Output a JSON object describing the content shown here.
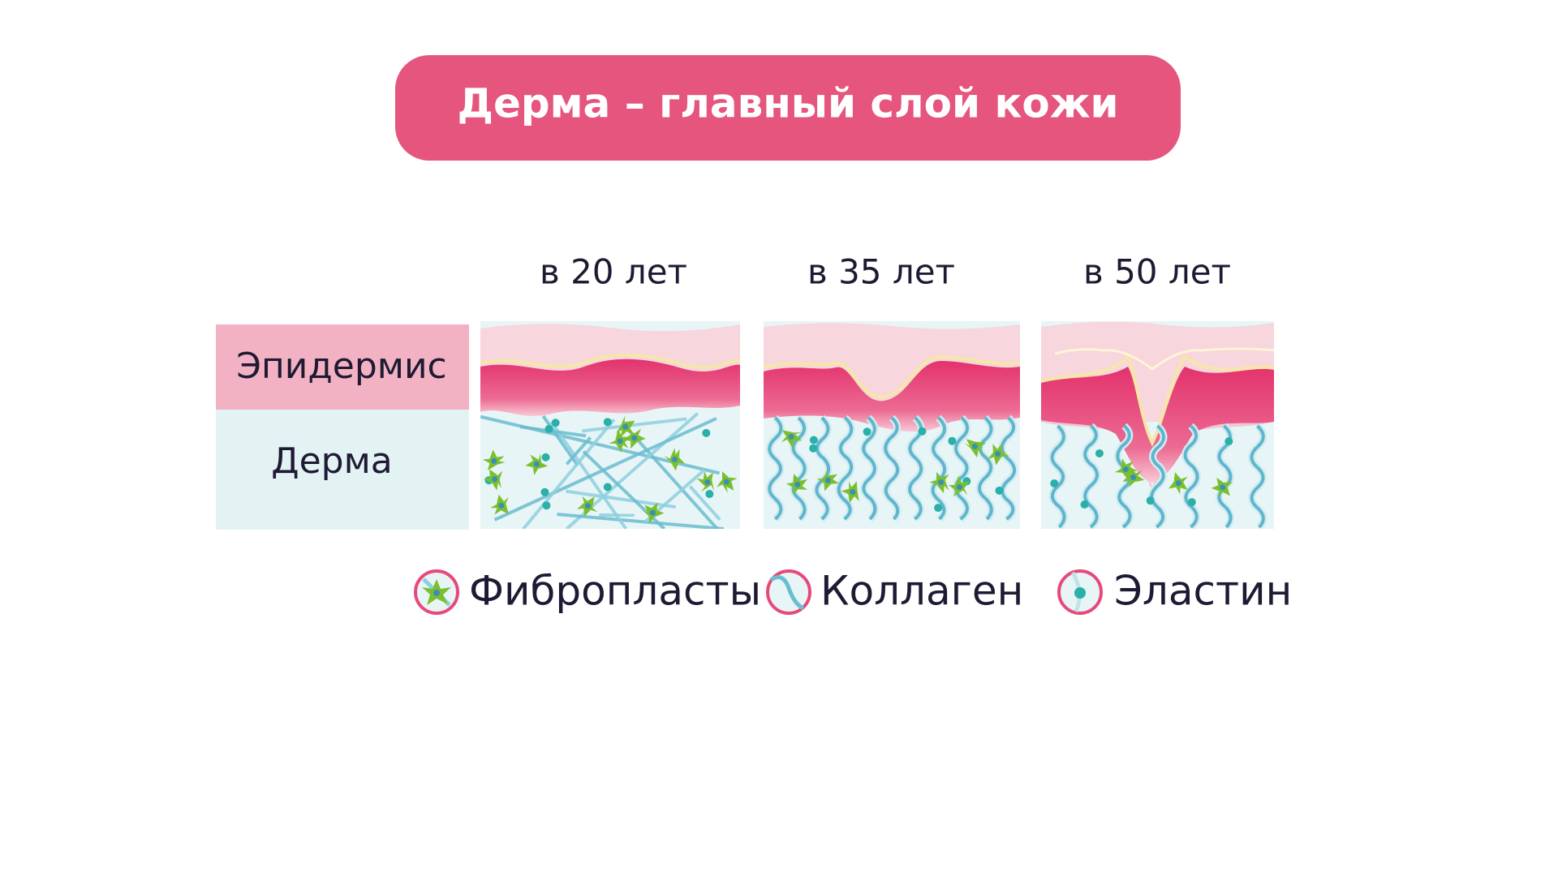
{
  "header": {
    "title": "Дерма – главный слой кожи"
  },
  "ages": [
    "в 20 лет",
    "в 35 лет",
    "в 50 лет"
  ],
  "layers": [
    "Эпидермис",
    "Дерма"
  ],
  "legend": [
    "Фибропласты",
    "Коллаген",
    "Эластин"
  ]
}
